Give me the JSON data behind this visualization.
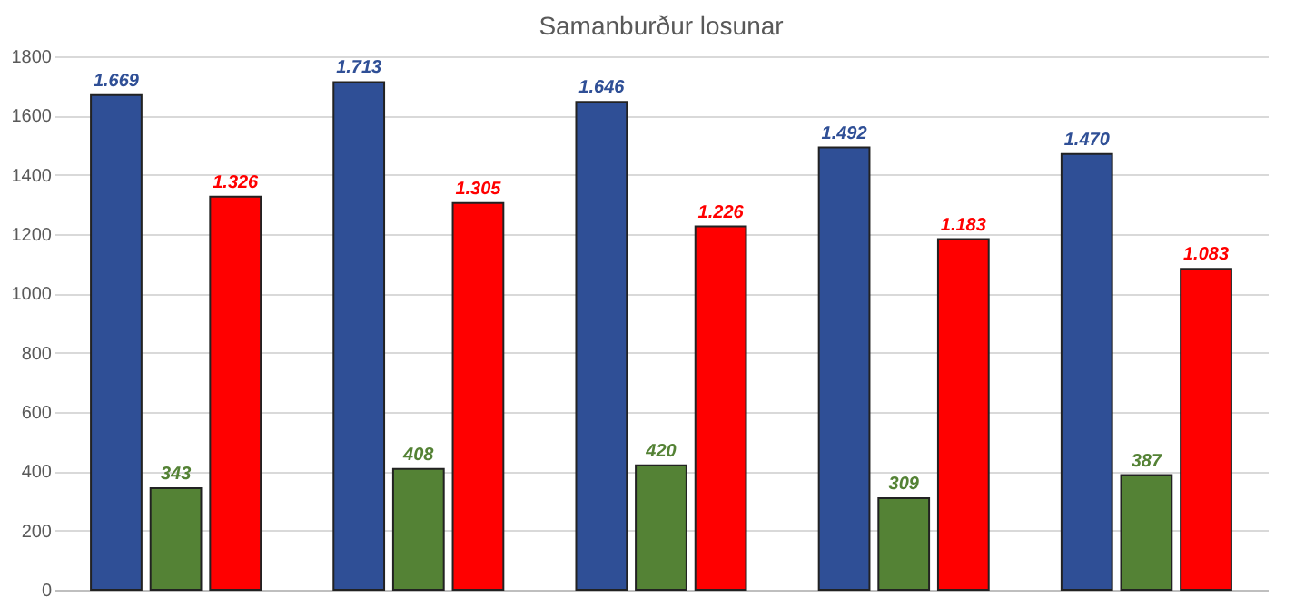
{
  "chart_data": {
    "type": "bar",
    "title": "Samanburður losunar",
    "categories": [
      null,
      null,
      null,
      null,
      null
    ],
    "series": [
      {
        "color": "#2f4f96",
        "values": [
          1669,
          1713,
          1646,
          1492,
          1470
        ],
        "value_labels": [
          "1.669",
          "1.713",
          "1.646",
          "1.492",
          "1.470"
        ]
      },
      {
        "color": "#548235",
        "values": [
          343,
          408,
          420,
          309,
          387
        ],
        "value_labels": [
          "343",
          "408",
          "420",
          "309",
          "387"
        ]
      },
      {
        "color": "#ff0000",
        "values": [
          1326,
          1305,
          1226,
          1183,
          1083
        ],
        "value_labels": [
          "1.326",
          "1.305",
          "1.226",
          "1.183",
          "1.083"
        ]
      }
    ],
    "ylim": [
      0,
      1800
    ],
    "yticks": [
      0,
      200,
      400,
      600,
      800,
      1000,
      1200,
      1400,
      1600,
      1800
    ],
    "grid": "y",
    "legend": false,
    "tick_labels": "y"
  }
}
